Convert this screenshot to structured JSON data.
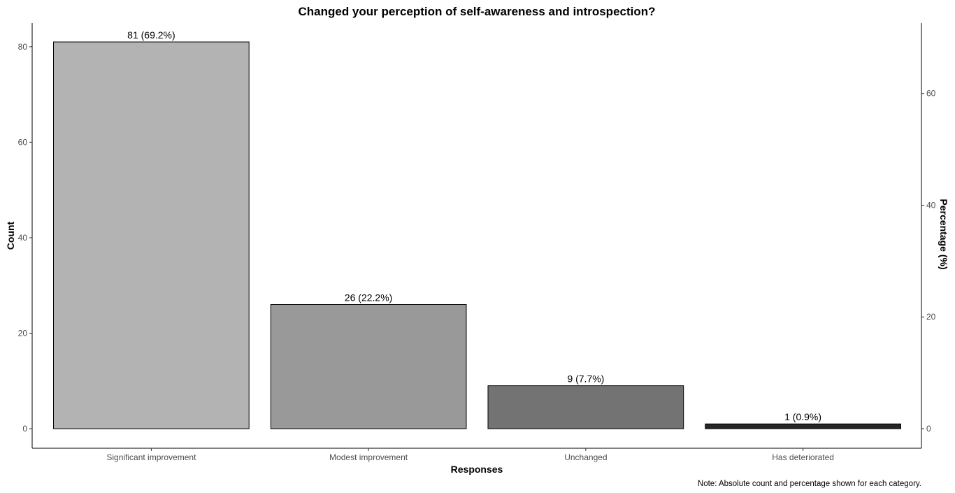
{
  "chart_data": {
    "type": "bar",
    "title": "Changed your perception of self-awareness and introspection?",
    "xlabel": "Responses",
    "ylabel": "Count",
    "y2label": "Percentage (%)",
    "note": "Note: Absolute count and percentage shown for each category.",
    "categories": [
      "Significant improvement",
      "Modest improvement",
      "Unchanged",
      "Has deteriorated"
    ],
    "values": [
      81,
      26,
      9,
      1
    ],
    "percentages": [
      69.2,
      22.2,
      7.7,
      0.9
    ],
    "data_labels": [
      "81 (69.2%)",
      "26 (22.2%)",
      "9 (7.7%)",
      "1 (0.9%)"
    ],
    "bar_colors": [
      "#b3b3b3",
      "#999999",
      "#737373",
      "#262626"
    ],
    "ylim": [
      0,
      85
    ],
    "yticks": [
      0,
      20,
      40,
      60,
      80
    ],
    "y2ticks": [
      0,
      20,
      40,
      60
    ],
    "grid": false,
    "legend": "none"
  }
}
